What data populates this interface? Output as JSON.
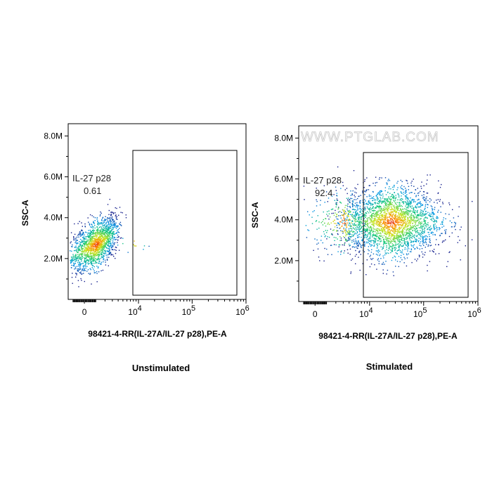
{
  "watermark": "WWW.PTGLAB.COM",
  "chart_data": [
    {
      "type": "scatter",
      "caption": "Unstimulated",
      "xlabel": "98421-4-RR(IL-27A/IL-27 p28),PE-A",
      "ylabel": "SSC-A",
      "x_scale": "biexponential",
      "xlim": [
        -1500,
        1000000
      ],
      "ylim": [
        0,
        8600000
      ],
      "x_ticks": [
        "0",
        "10^4",
        "10^5",
        "10^6"
      ],
      "y_ticks": [
        "2.0M",
        "4.0M",
        "6.0M",
        "8.0M"
      ],
      "gate": {
        "name": "IL-27 p28",
        "percent": "0.61",
        "x_range": [
          5000,
          800000
        ],
        "y_range": [
          100000,
          7100000
        ]
      },
      "populations": [
        {
          "x_center": 1000,
          "y_center": 2700000,
          "x_spread": 1300,
          "y_spread": 650000,
          "tilt": 0.55,
          "n": 1600
        },
        {
          "x_center": 9000,
          "y_center": 2800000,
          "x_spread": 3000,
          "y_spread": 300000,
          "tilt": 0,
          "n": 12
        }
      ]
    },
    {
      "type": "scatter",
      "caption": "Stimulated",
      "xlabel": "98421-4-RR(IL-27A/IL-27 p28),PE-A",
      "ylabel": "SSC-A",
      "x_scale": "biexponential",
      "xlim": [
        -1500,
        1000000
      ],
      "ylim": [
        0,
        8600000
      ],
      "x_ticks": [
        "0",
        "10^4",
        "10^5",
        "10^6"
      ],
      "y_ticks": [
        "2.0M",
        "4.0M",
        "6.0M",
        "8.0M"
      ],
      "gate": {
        "name": "IL-27 p28",
        "percent": "92.4",
        "x_range": [
          5000,
          800000
        ],
        "y_range": [
          100000,
          7100000
        ]
      },
      "populations": [
        {
          "x_center": 25000,
          "y_center": 3900000,
          "x_spread": 0.45,
          "y_spread": 850000,
          "tilt": 0,
          "n": 2600
        },
        {
          "x_center": 3000,
          "y_center": 3900000,
          "x_spread": 2000,
          "y_spread": 800000,
          "tilt": 0,
          "n": 300
        }
      ]
    }
  ]
}
